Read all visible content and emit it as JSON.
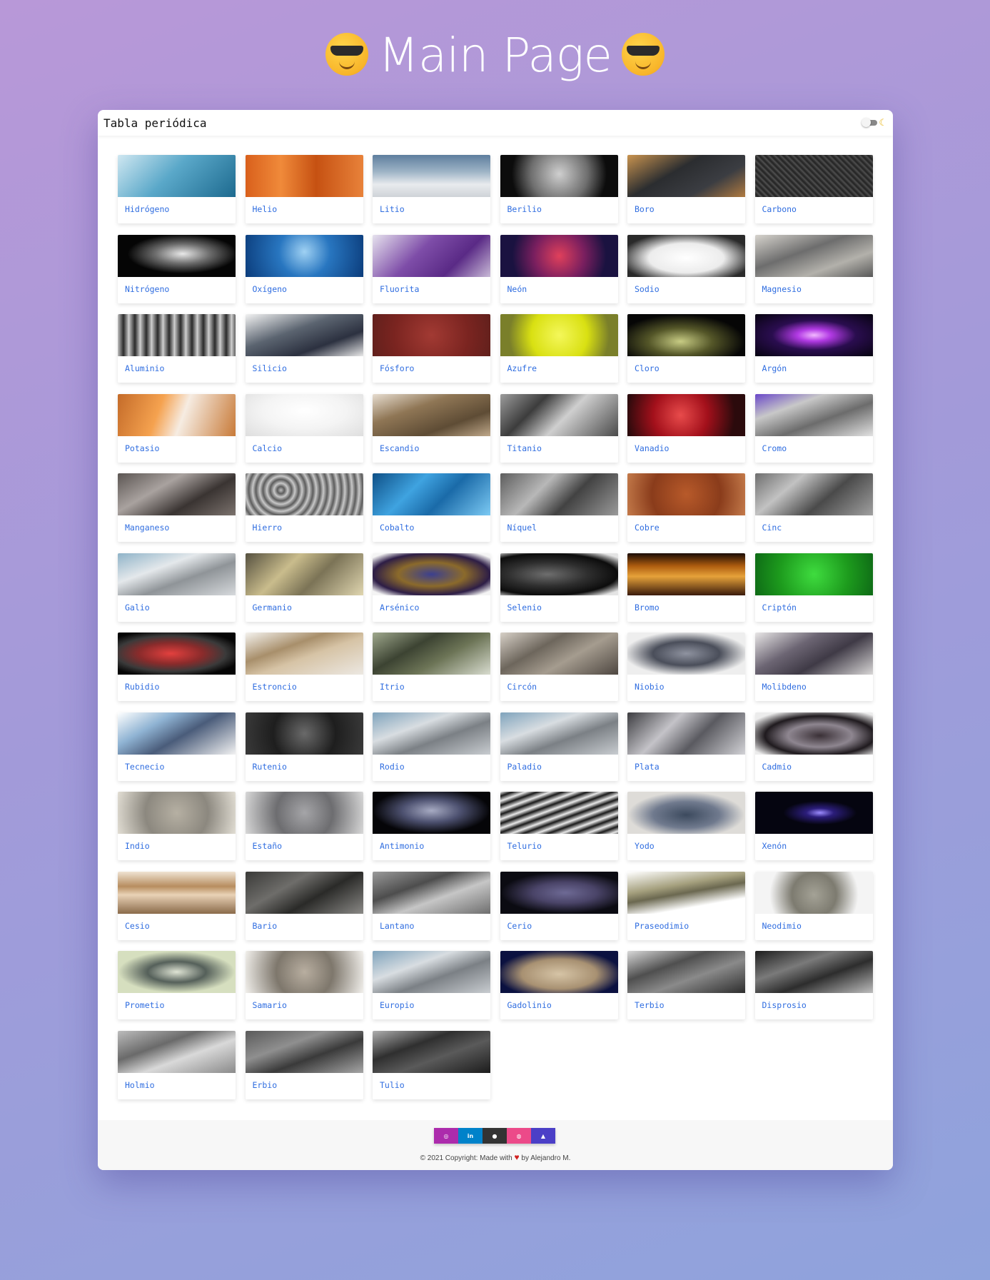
{
  "page": {
    "title": "Main Page"
  },
  "header": {
    "app_title": "Tabla periódica"
  },
  "elements": [
    {
      "name": "Hidrógeno",
      "bg": "linear-gradient(135deg,#cfe7f1,#5aa8c9 45%,#1d6a8f)"
    },
    {
      "name": "Helio",
      "bg": "linear-gradient(90deg,#d9601c,#f08a3a 30%,#c65112 60%,#e8823a)"
    },
    {
      "name": "Litio",
      "bg": "linear-gradient(180deg,#5e7e9e 0%,#9eb4c6 40%,#e8ebee 70%,#cfd3d8)"
    },
    {
      "name": "Berilio",
      "bg": "radial-gradient(circle at 50% 45%,#cfcfcf,#6e6e6e 45%,#0c0c0c 75%)"
    },
    {
      "name": "Boro",
      "bg": "linear-gradient(150deg,#c9934f,#2b2d30 40%,#3b3d42 70%,#b07a40)"
    },
    {
      "name": "Carbono",
      "bg": "repeating-linear-gradient(45deg,#555,#222 3px,#444 6px)"
    },
    {
      "name": "Nitrógeno",
      "bg": "radial-gradient(ellipse at 55% 45%,#e9e9e9,#6c6c6c 30%,#050505 60%)"
    },
    {
      "name": "Oxígeno",
      "bg": "radial-gradient(circle at 50% 40%,#9fd1f3,#2876c0 40%,#0b3c7b)"
    },
    {
      "name": "Fluorita",
      "bg": "linear-gradient(135deg,#e6e2ee,#7e4da8 40%,#5a2a86 70%,#c9bad7)"
    },
    {
      "name": "Neón",
      "bg": "radial-gradient(circle at 50% 50%,#e0405b,#7a1f5f 40%,#1a1240 75%)"
    },
    {
      "name": "Sodio",
      "bg": "radial-gradient(ellipse at 50% 55%,#ffffff,#ececec 45%,#2a2a2a 80%)"
    },
    {
      "name": "Magnesio",
      "bg": "linear-gradient(160deg,#d6d3cd,#6d6d6d 40%,#b3b1ab 70%,#585858)"
    },
    {
      "name": "Aluminio",
      "bg": "repeating-linear-gradient(90deg,#bfbfbf,#2a2a2a 8px,#d9d9d9 16px)"
    },
    {
      "name": "Silicio",
      "bg": "linear-gradient(160deg,#f2f2f2,#5b6470 40%,#2c3140 70%,#e8e8e8)"
    },
    {
      "name": "Fósforo",
      "bg": "radial-gradient(circle,#a23a33,#7a2420 60%,#61201c)"
    },
    {
      "name": "Azufre",
      "bg": "radial-gradient(circle at 50% 50%,#f4f75a,#d9e012 45%,#7a7f2a 80%)"
    },
    {
      "name": "Cloro",
      "bg": "radial-gradient(ellipse at 45% 65%,#c8cc84,#545628 35%,#060606 70%)"
    },
    {
      "name": "Argón",
      "bg": "radial-gradient(ellipse at 50% 50%,#f2b8ff,#b23ae4 20%,#2a0d4f 50%,#06030f)"
    },
    {
      "name": "Potasio",
      "bg": "linear-gradient(110deg,#c46b29,#f5a24f 35%,#f6ece2 55%,#c87a38)"
    },
    {
      "name": "Calcio",
      "bg": "radial-gradient(ellipse at 50% 40%,#ffffff,#f4f4f4 50%,#dedede)"
    },
    {
      "name": "Escandio",
      "bg": "linear-gradient(160deg,#e7ddd0,#8f7655 35%,#5e4c35 70%,#bfa88a)"
    },
    {
      "name": "Titanio",
      "bg": "linear-gradient(135deg,#9c9c9c,#3c3c3c 30%,#cfcfcf 55%,#4a4a4a)"
    },
    {
      "name": "Vanadio",
      "bg": "radial-gradient(circle at 45% 50%,#e84b4b,#a3101b 40%,#2b0a0c 80%)"
    },
    {
      "name": "Cromo",
      "bg": "linear-gradient(160deg,#6a48c9,#c8c8c8 30%,#6c6c6c 60%,#e2e2e2)"
    },
    {
      "name": "Manganeso",
      "bg": "linear-gradient(150deg,#5b5552,#a9a29f 35%,#3a3432 65%,#7b726d)"
    },
    {
      "name": "Hierro",
      "bg": "repeating-radial-gradient(circle at 30% 40%,#bdbdbd,#5d5d5d 5px,#cfcfcf 10px)"
    },
    {
      "name": "Cobalto",
      "bg": "linear-gradient(135deg,#0e4f86,#3fa3e0 35%,#1a6aa8 60%,#7ccaf4)"
    },
    {
      "name": "Níquel",
      "bg": "linear-gradient(135deg,#5d5d5d,#b8b8b8 35%,#424242 60%,#9a9a9a)"
    },
    {
      "name": "Cobre",
      "bg": "radial-gradient(circle,#b85a2a,#8a3c1b 55%,#c47a4a)"
    },
    {
      "name": "Cinc",
      "bg": "linear-gradient(140deg,#6e6e6e,#c2c2c2 30%,#4a4a4a 60%,#a0a0a0)"
    },
    {
      "name": "Galio",
      "bg": "linear-gradient(160deg,#8fb3c8,#e4e8eb 35%,#8f9498 60%,#d6d9dc)"
    },
    {
      "name": "Germanio",
      "bg": "linear-gradient(135deg,#55503f,#c9bc8c 35%,#7b7356 60%,#e0d6b0)"
    },
    {
      "name": "Arsénico",
      "bg": "radial-gradient(ellipse at 50% 50%,#3b3f8f,#8b6a2b 40%,#2d1d46 70%,#f4f4f4 90%)"
    },
    {
      "name": "Selenio",
      "bg": "radial-gradient(ellipse at 40% 50%,#6e6e6e,#2f2f2f 40%,#0c0c0c 70%,#e4e4e4 90%)"
    },
    {
      "name": "Bromo",
      "bg": "linear-gradient(180deg,#1a0c05,#ad5c0f 30%,#e6a23a 55%,#3a1a0b)"
    },
    {
      "name": "Criptón",
      "bg": "radial-gradient(circle,#3fdc3f,#1d9b1d 55%,#0e6a16)"
    },
    {
      "name": "Rubidio",
      "bg": "radial-gradient(ellipse at 45% 50%,#e3403e,#8a2b2b 35%,#3a3a3a 60%,#050505 80%)"
    },
    {
      "name": "Estroncio",
      "bg": "linear-gradient(160deg,#f4f2ee,#a88f6b 35%,#d6c3a5 55%,#ece8e2)"
    },
    {
      "name": "Itrio",
      "bg": "linear-gradient(150deg,#9fa88d,#3c4332 35%,#6c7456 60%,#d8dccf)"
    },
    {
      "name": "Circón",
      "bg": "linear-gradient(150deg,#d7d0c7,#6d665c 35%,#a59c8f 60%,#4d4640)"
    },
    {
      "name": "Niobio",
      "bg": "radial-gradient(ellipse at 50% 50%,#8f93a0,#4a4e5a 40%,#eeeeee 75%)"
    },
    {
      "name": "Molibdeno",
      "bg": "linear-gradient(150deg,#e8e6e6,#6c6573 35%,#3f3a46 60%,#d8d6d6)"
    },
    {
      "name": "Tecnecio",
      "bg": "linear-gradient(150deg,#ffffff,#8fb3d3 30%,#4a5c7a 55%,#f2f2f2)"
    },
    {
      "name": "Rutenio",
      "bg": "radial-gradient(circle,#6a6a6a,#1e1e1e 50%,#3a3a3a)"
    },
    {
      "name": "Rodio",
      "bg": "linear-gradient(160deg,#7fa3bc,#d8dde1 35%,#7b8085 60%,#c8ccd0)"
    },
    {
      "name": "Paladio",
      "bg": "linear-gradient(160deg,#7fa3bc,#d8dde1 35%,#7b8085 60%,#c8ccd0)"
    },
    {
      "name": "Plata",
      "bg": "linear-gradient(135deg,#3c3c40,#c4c3c8 35%,#5a5a60 60%,#d2d2d6)"
    },
    {
      "name": "Cadmio",
      "bg": "radial-gradient(ellipse at 55% 55%,#3a3036,#8e8690 35%,#1f1a1e 60%,#ececec 85%)"
    },
    {
      "name": "Indio",
      "bg": "radial-gradient(circle,#b6b0a3,#8c887f 50%,#e2ded4)"
    },
    {
      "name": "Estaño",
      "bg": "radial-gradient(circle,#a5a5a8,#6d6d70 45%,#d8d8d8)"
    },
    {
      "name": "Antimonio",
      "bg": "radial-gradient(ellipse at 50% 45%,#a7abc3,#4d5170 35%,#050508 70%)"
    },
    {
      "name": "Telurio",
      "bg": "repeating-linear-gradient(160deg,#f4f4f4,#1a1a1a 6px,#d9d9d9 12px)"
    },
    {
      "name": "Yodo",
      "bg": "radial-gradient(ellipse at 50% 55%,#3c4a5e,#707a8e 40%,#dedcd8 70%)"
    },
    {
      "name": "Xenón",
      "bg": "radial-gradient(ellipse at 55% 50%,#9c8cff,#2b1d7a 15%,#050510 40%)"
    },
    {
      "name": "Cesio",
      "bg": "linear-gradient(180deg,#efe3d3,#b78d5f 35%,#e9d2b6 55%,#8a6a4a)"
    },
    {
      "name": "Bario",
      "bg": "linear-gradient(150deg,#3a3a38,#6e6d6a 35%,#2a2a28 60%,#8a8986)"
    },
    {
      "name": "Lantano",
      "bg": "linear-gradient(160deg,#9a9a9a,#4d4d4d 35%,#c6c6c6 60%,#6e6e6e)"
    },
    {
      "name": "Cerio",
      "bg": "radial-gradient(ellipse at 55% 50%,#6e6a95,#4a4468 35%,#0b0b12 70%)"
    },
    {
      "name": "Praseodimio",
      "bg": "linear-gradient(170deg,#ffffff,#a5a07e 35%,#6b6850 50%,#ffffff 75%)"
    },
    {
      "name": "Neodimio",
      "bg": "radial-gradient(circle at 50% 55%,#a4a296,#7d7b70 35%,#f4f4f4 70%)"
    },
    {
      "name": "Prometio",
      "bg": "radial-gradient(ellipse at 50% 50%,#dfe4d4,#55605a 35%,#d6dfbf 70%)"
    },
    {
      "name": "Samario",
      "bg": "radial-gradient(circle,#b8aea0,#7e776c 45%,#f2f0ec)"
    },
    {
      "name": "Europio",
      "bg": "linear-gradient(160deg,#7fa3bc,#d8dde1 35%,#7b8085 60%,#c8ccd0)"
    },
    {
      "name": "Gadolinio",
      "bg": "radial-gradient(ellipse at 50% 55%,#d6c4a6,#a89172 45%,#0b1140 75%)"
    },
    {
      "name": "Terbio",
      "bg": "linear-gradient(160deg,#d8d8d8,#4f4f4f 35%,#8a8a8a 60%,#2d2d2d)"
    },
    {
      "name": "Disprosio",
      "bg": "linear-gradient(160deg,#1d1d1d,#7a7a7a 35%,#2d2d2d 60%,#bdbdbd)"
    },
    {
      "name": "Holmio",
      "bg": "linear-gradient(160deg,#bcbcbc,#6a6a6a 35%,#d9d9d9 60%,#8a8a8a)"
    },
    {
      "name": "Erbio",
      "bg": "linear-gradient(160deg,#5a5a5a,#8f8f8f 35%,#3a3a3a 60%,#a6a6a6)"
    },
    {
      "name": "Tulio",
      "bg": "linear-gradient(160deg,#aeaeae,#2f2f2f 35%,#5a5a5a 60%,#1c1c1c)"
    }
  ],
  "footer": {
    "social": [
      {
        "icon": "instagram-icon",
        "glyph": "◎",
        "color": "#ac2bac"
      },
      {
        "icon": "linkedin-icon",
        "glyph": "in",
        "color": "#0082ca"
      },
      {
        "icon": "github-icon",
        "glyph": "●",
        "color": "#333333"
      },
      {
        "icon": "dribbble-icon",
        "glyph": "◍",
        "color": "#ec4a89"
      },
      {
        "icon": "user-icon",
        "glyph": "▲",
        "color": "#4b3fc7"
      }
    ],
    "copyright_before": "© 2021 Copyright: Made with",
    "copyright_after": "by Alejandro M."
  }
}
